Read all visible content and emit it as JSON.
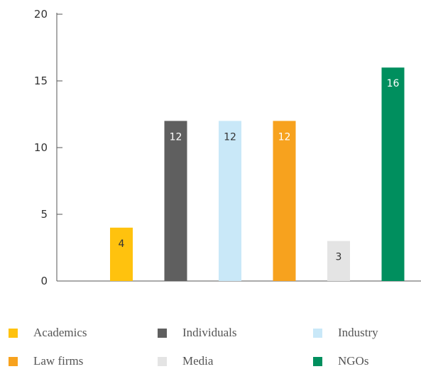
{
  "chart_data": {
    "type": "bar",
    "categories": [
      "Academics",
      "Individuals",
      "Industry",
      "Law firms",
      "Media",
      "NGOs"
    ],
    "values": [
      4,
      12,
      12,
      12,
      3,
      16
    ],
    "colors": [
      "#FFC20E",
      "#5F5F5F",
      "#C9E8F8",
      "#F7A21E",
      "#E4E4E4",
      "#008F5E"
    ],
    "label_colors": [
      "#333333",
      "#ffffff",
      "#333333",
      "#ffffff",
      "#333333",
      "#ffffff"
    ],
    "ylim": [
      0,
      20
    ],
    "yticks": [
      0,
      5,
      10,
      15,
      20
    ],
    "title": "",
    "xlabel": "",
    "ylabel": "",
    "grid": false,
    "legend_position": "bottom"
  }
}
